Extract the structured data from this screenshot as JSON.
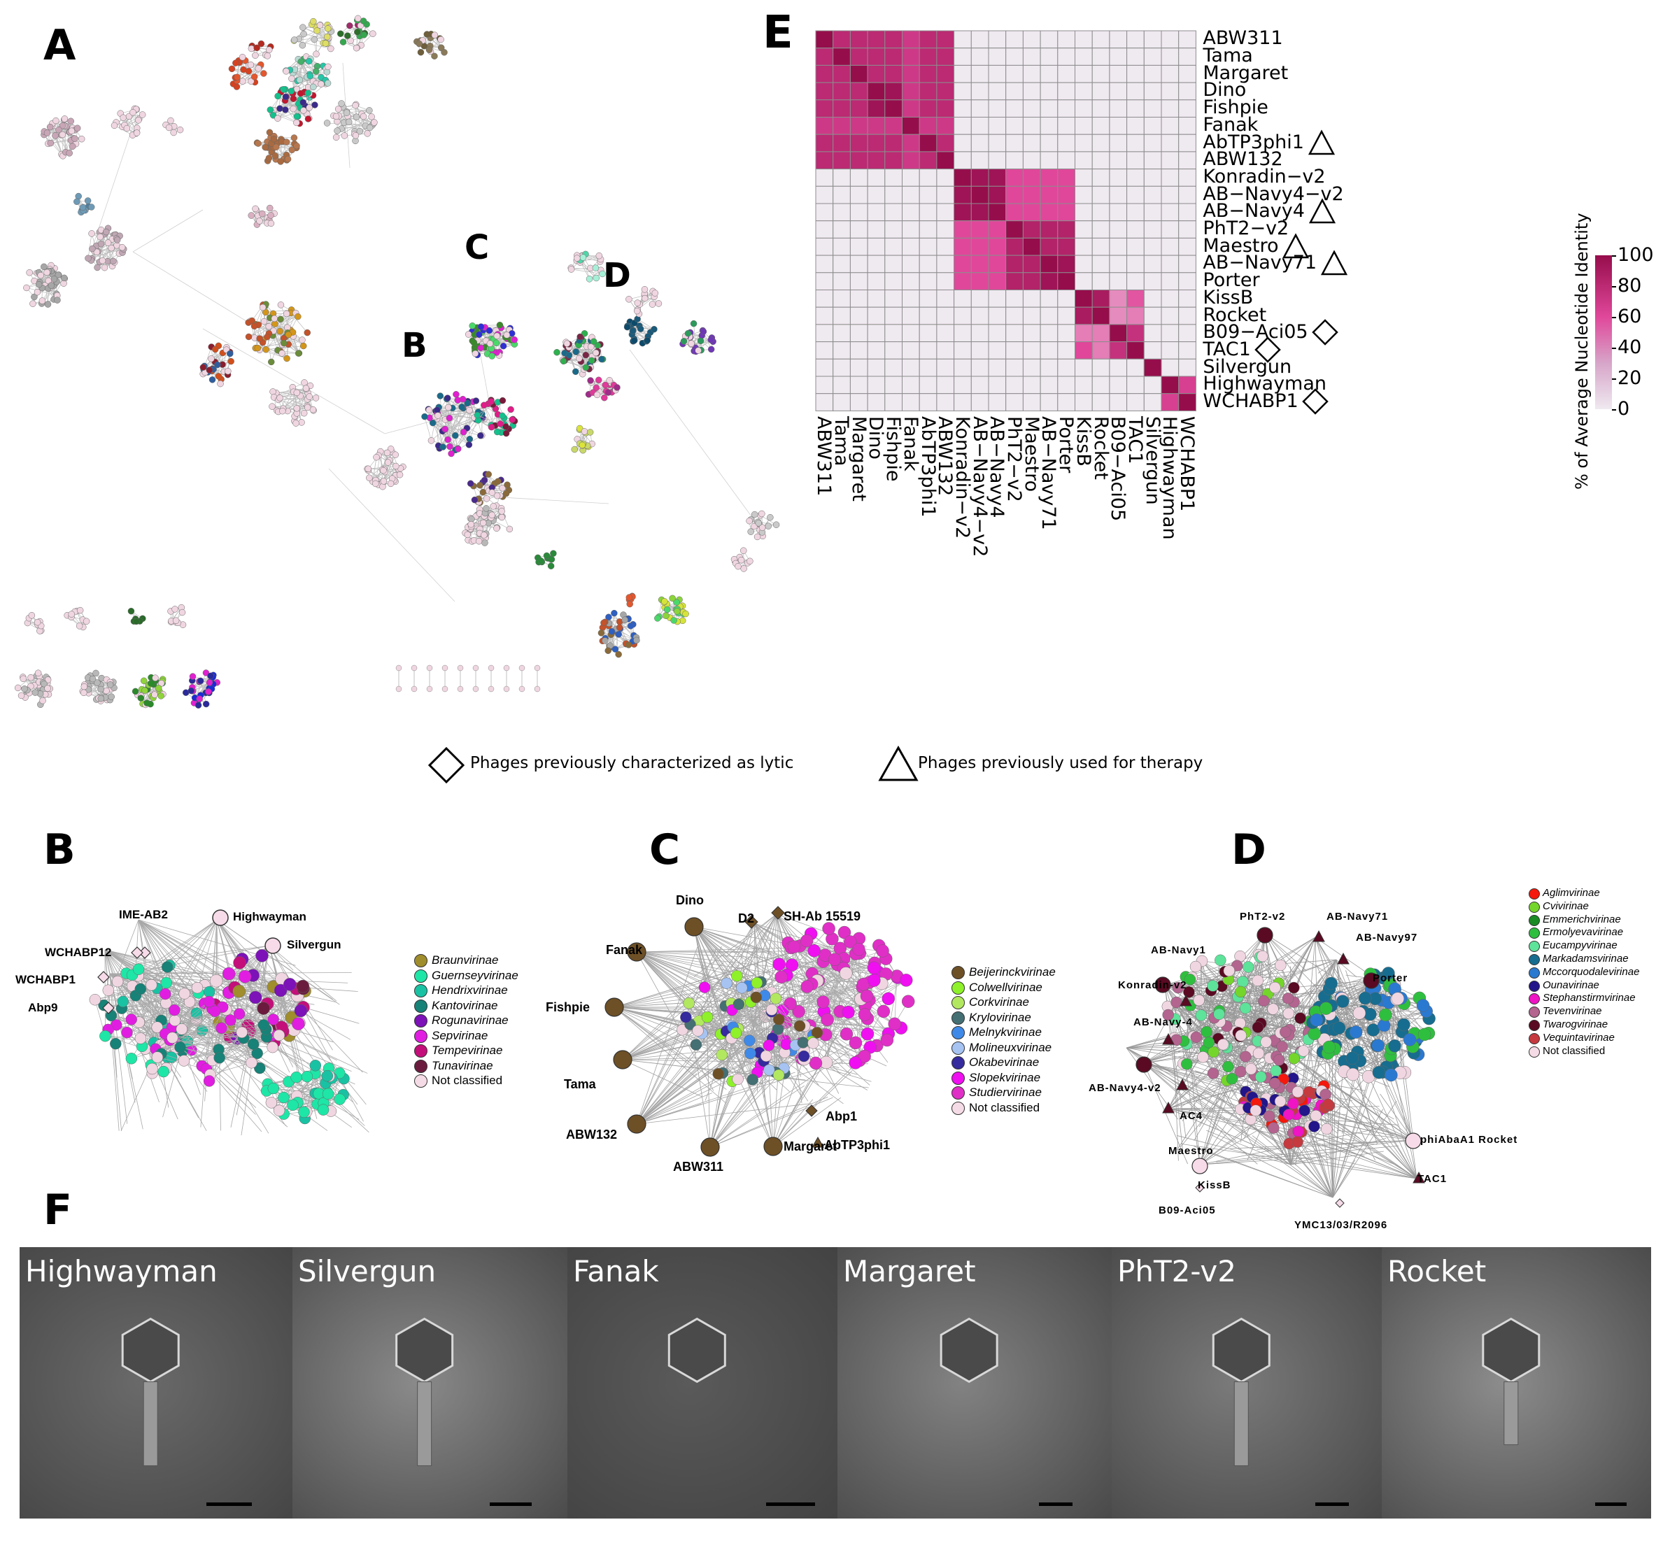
{
  "panels": {
    "A": "A",
    "B": "B",
    "C": "C",
    "D": "D",
    "E": "E",
    "F": "F",
    "overview_B": "B",
    "overview_C": "C",
    "overview_D": "D"
  },
  "heatmap": {
    "rows": [
      "ABW311",
      "Tama",
      "Margaret",
      "Dino",
      "Fishpie",
      "Fanak",
      "AbTP3phi1",
      "ABW132",
      "Konradin−v2",
      "AB−Navy4−v2",
      "AB−Navy4",
      "PhT2−v2",
      "Maestro",
      "AB−Navy71",
      "Porter",
      "KissB",
      "Rocket",
      "B09−Aci05",
      "TAC1",
      "Silvergun",
      "Highwayman",
      "WCHABP1"
    ],
    "row_markers": [
      "",
      "",
      "",
      "",
      "",
      "",
      "triangle",
      "",
      "",
      "",
      "triangle",
      "",
      "triangle",
      "triangle",
      "",
      "",
      "",
      "diamond",
      "diamond",
      "",
      "",
      "diamond"
    ],
    "matrix": [
      [
        100,
        80,
        80,
        80,
        80,
        70,
        80,
        80,
        0,
        0,
        0,
        0,
        0,
        0,
        0,
        0,
        0,
        0,
        0,
        0,
        0,
        0
      ],
      [
        80,
        100,
        80,
        80,
        80,
        70,
        80,
        80,
        0,
        0,
        0,
        0,
        0,
        0,
        0,
        0,
        0,
        0,
        0,
        0,
        0,
        0
      ],
      [
        80,
        80,
        100,
        80,
        80,
        70,
        80,
        80,
        0,
        0,
        0,
        0,
        0,
        0,
        0,
        0,
        0,
        0,
        0,
        0,
        0,
        0
      ],
      [
        80,
        80,
        80,
        100,
        95,
        70,
        80,
        80,
        0,
        0,
        0,
        0,
        0,
        0,
        0,
        0,
        0,
        0,
        0,
        0,
        0,
        0
      ],
      [
        80,
        80,
        80,
        95,
        100,
        70,
        80,
        80,
        0,
        0,
        0,
        0,
        0,
        0,
        0,
        0,
        0,
        0,
        0,
        0,
        0,
        0
      ],
      [
        70,
        70,
        70,
        70,
        70,
        100,
        70,
        70,
        0,
        0,
        0,
        0,
        0,
        0,
        0,
        0,
        0,
        0,
        0,
        0,
        0,
        0
      ],
      [
        80,
        80,
        80,
        80,
        80,
        70,
        100,
        80,
        0,
        0,
        0,
        0,
        0,
        0,
        0,
        0,
        0,
        0,
        0,
        0,
        0,
        0
      ],
      [
        80,
        80,
        80,
        80,
        80,
        70,
        80,
        100,
        0,
        0,
        0,
        0,
        0,
        0,
        0,
        0,
        0,
        0,
        0,
        0,
        0,
        0
      ],
      [
        0,
        0,
        0,
        0,
        0,
        0,
        0,
        0,
        100,
        95,
        95,
        60,
        60,
        60,
        60,
        0,
        0,
        0,
        0,
        0,
        0,
        0
      ],
      [
        0,
        0,
        0,
        0,
        0,
        0,
        0,
        0,
        95,
        100,
        95,
        60,
        60,
        60,
        60,
        0,
        0,
        0,
        0,
        0,
        0,
        0
      ],
      [
        0,
        0,
        0,
        0,
        0,
        0,
        0,
        0,
        95,
        95,
        100,
        60,
        60,
        60,
        60,
        0,
        0,
        0,
        0,
        0,
        0,
        0
      ],
      [
        0,
        0,
        0,
        0,
        0,
        0,
        0,
        0,
        60,
        60,
        60,
        100,
        85,
        85,
        85,
        0,
        0,
        0,
        0,
        0,
        0,
        0
      ],
      [
        0,
        0,
        0,
        0,
        0,
        0,
        0,
        0,
        60,
        60,
        60,
        85,
        100,
        85,
        85,
        0,
        0,
        0,
        0,
        0,
        0,
        0
      ],
      [
        0,
        0,
        0,
        0,
        0,
        0,
        0,
        0,
        60,
        60,
        60,
        85,
        85,
        100,
        95,
        0,
        0,
        0,
        0,
        0,
        0,
        0
      ],
      [
        0,
        0,
        0,
        0,
        0,
        0,
        0,
        0,
        60,
        60,
        60,
        85,
        85,
        95,
        100,
        0,
        0,
        0,
        0,
        0,
        0,
        0
      ],
      [
        0,
        0,
        0,
        0,
        0,
        0,
        0,
        0,
        0,
        0,
        0,
        0,
        0,
        0,
        0,
        100,
        90,
        35,
        55,
        0,
        0,
        0
      ],
      [
        0,
        0,
        0,
        0,
        0,
        0,
        0,
        0,
        0,
        0,
        0,
        0,
        0,
        0,
        0,
        90,
        100,
        35,
        40,
        0,
        0,
        0
      ],
      [
        0,
        0,
        0,
        0,
        0,
        0,
        0,
        0,
        0,
        0,
        0,
        0,
        0,
        0,
        0,
        40,
        40,
        100,
        75,
        0,
        0,
        0
      ],
      [
        0,
        0,
        0,
        0,
        0,
        0,
        0,
        0,
        0,
        0,
        0,
        0,
        0,
        0,
        0,
        60,
        40,
        75,
        100,
        0,
        0,
        0
      ],
      [
        0,
        0,
        0,
        0,
        0,
        0,
        0,
        0,
        0,
        0,
        0,
        0,
        0,
        0,
        0,
        0,
        0,
        0,
        0,
        100,
        0,
        0
      ],
      [
        0,
        0,
        0,
        0,
        0,
        0,
        0,
        0,
        0,
        0,
        0,
        0,
        0,
        0,
        0,
        0,
        0,
        0,
        0,
        0,
        100,
        65
      ],
      [
        0,
        0,
        0,
        0,
        0,
        0,
        0,
        0,
        0,
        0,
        0,
        0,
        0,
        0,
        0,
        0,
        0,
        0,
        0,
        0,
        65,
        100
      ]
    ],
    "colorbar_title": "% of Average Nucleotide Identity",
    "colorbar_ticks": [
      "100",
      "80",
      "60",
      "40",
      "20",
      "0"
    ],
    "color_low": "#efe9f0",
    "color_mid": "#e0479a",
    "color_high": "#960d4c"
  },
  "chart_data": {
    "type": "heatmap",
    "x": [
      "ABW311",
      "Tama",
      "Margaret",
      "Dino",
      "Fishpie",
      "Fanak",
      "AbTP3phi1",
      "ABW132",
      "Konradin−v2",
      "AB−Navy4−v2",
      "AB−Navy4",
      "PhT2−v2",
      "Maestro",
      "AB−Navy71",
      "Porter",
      "KissB",
      "Rocket",
      "B09−Aci05",
      "TAC1",
      "Silvergun",
      "Highwayman",
      "WCHABP1"
    ],
    "y": [
      "ABW311",
      "Tama",
      "Margaret",
      "Dino",
      "Fishpie",
      "Fanak",
      "AbTP3phi1",
      "ABW132",
      "Konradin−v2",
      "AB−Navy4−v2",
      "AB−Navy4",
      "PhT2−v2",
      "Maestro",
      "AB−Navy71",
      "Porter",
      "KissB",
      "Rocket",
      "B09−Aci05",
      "TAC1",
      "Silvergun",
      "Highwayman",
      "WCHABP1"
    ],
    "colorbar_label": "% of Average Nucleotide Identity",
    "range": [
      0,
      100
    ]
  },
  "key": {
    "diamond_label": "Phages previously characterized as lytic",
    "triangle_label": "Phages previously used for therapy"
  },
  "panelB": {
    "labels": [
      "IME-AB2",
      "Highwayman",
      "WCHABP12",
      "Silvergun",
      "WCHABP1",
      "Abp9"
    ],
    "legend": [
      {
        "name": "Braunvirinae",
        "color": "#a08d2b"
      },
      {
        "name": "Guernseyvirinae",
        "color": "#1ee6a6"
      },
      {
        "name": "Hendrixvirinae",
        "color": "#19c2a3"
      },
      {
        "name": "Kantovirinae",
        "color": "#178277"
      },
      {
        "name": "Rogunavirinae",
        "color": "#7c12b8"
      },
      {
        "name": "Sepvirinae",
        "color": "#e21de2"
      },
      {
        "name": "Tempevirinae",
        "color": "#c40f7a"
      },
      {
        "name": "Tunavirinae",
        "color": "#6b1c3e"
      },
      {
        "name": "Not classified",
        "color": "#f5dbe5"
      }
    ]
  },
  "panelC": {
    "labels": [
      "Dino",
      "D2",
      "SH-Ab 15519",
      "Fanak",
      "Fishpie",
      "Tama",
      "ABW132",
      "ABW311",
      "Margaret",
      "Abp1",
      "AbTP3phi1"
    ],
    "legend": [
      {
        "name": "Beijerinckvirinae",
        "color": "#6e5026"
      },
      {
        "name": "Colwellvirinae",
        "color": "#8ef12a"
      },
      {
        "name": "Corkvirinae",
        "color": "#b2e860"
      },
      {
        "name": "Krylovirinae",
        "color": "#446f73"
      },
      {
        "name": "Melnykvirinae",
        "color": "#3f8ae8"
      },
      {
        "name": "Molineuxvirinae",
        "color": "#a6c3f2"
      },
      {
        "name": "Okabevirinae",
        "color": "#352a9e"
      },
      {
        "name": "Slopekvirinae",
        "color": "#f00ff0"
      },
      {
        "name": "Studiervirinae",
        "color": "#e02fc6"
      },
      {
        "name": "Not classified",
        "color": "#f5dbe5"
      }
    ]
  },
  "panelD": {
    "labels": [
      "PhT2-v2",
      "AB-Navy71",
      "AB-Navy1",
      "AB-Navy97",
      "Konradin-v2",
      "Porter",
      "AB-Navy-4",
      "AB-Navy4-v2",
      "AC4",
      "Maestro",
      "KissB",
      "phiAbaA1 Rocket",
      "B09-Aci05",
      "TAC1",
      "YMC13/03/R2096"
    ],
    "legend": [
      {
        "name": "Aglimvirinae",
        "color": "#f5180c"
      },
      {
        "name": "Cvivirinae",
        "color": "#74d62a"
      },
      {
        "name": "Emmerichvirinae",
        "color": "#1a8a24"
      },
      {
        "name": "Ermolyevavirinae",
        "color": "#2fbf3f"
      },
      {
        "name": "Eucampyvirinae",
        "color": "#5ee39a"
      },
      {
        "name": "Markadamsvirinae",
        "color": "#176d8f"
      },
      {
        "name": "Mccorquodalevirinae",
        "color": "#2a79d1"
      },
      {
        "name": "Ounavirinae",
        "color": "#23158a"
      },
      {
        "name": "Stephanstirmvirinae",
        "color": "#ef14c4"
      },
      {
        "name": "Tevenvirinae",
        "color": "#b3648f"
      },
      {
        "name": "Twarogvirinae",
        "color": "#5a0a22"
      },
      {
        "name": "Vequintavirinae",
        "color": "#c6393f"
      },
      {
        "name": "Not classified",
        "color": "#f5dbe5"
      }
    ]
  },
  "panelF": {
    "images": [
      "Highwayman",
      "Silvergun",
      "Fanak",
      "Margaret",
      "PhT2-v2",
      "Rocket"
    ]
  }
}
